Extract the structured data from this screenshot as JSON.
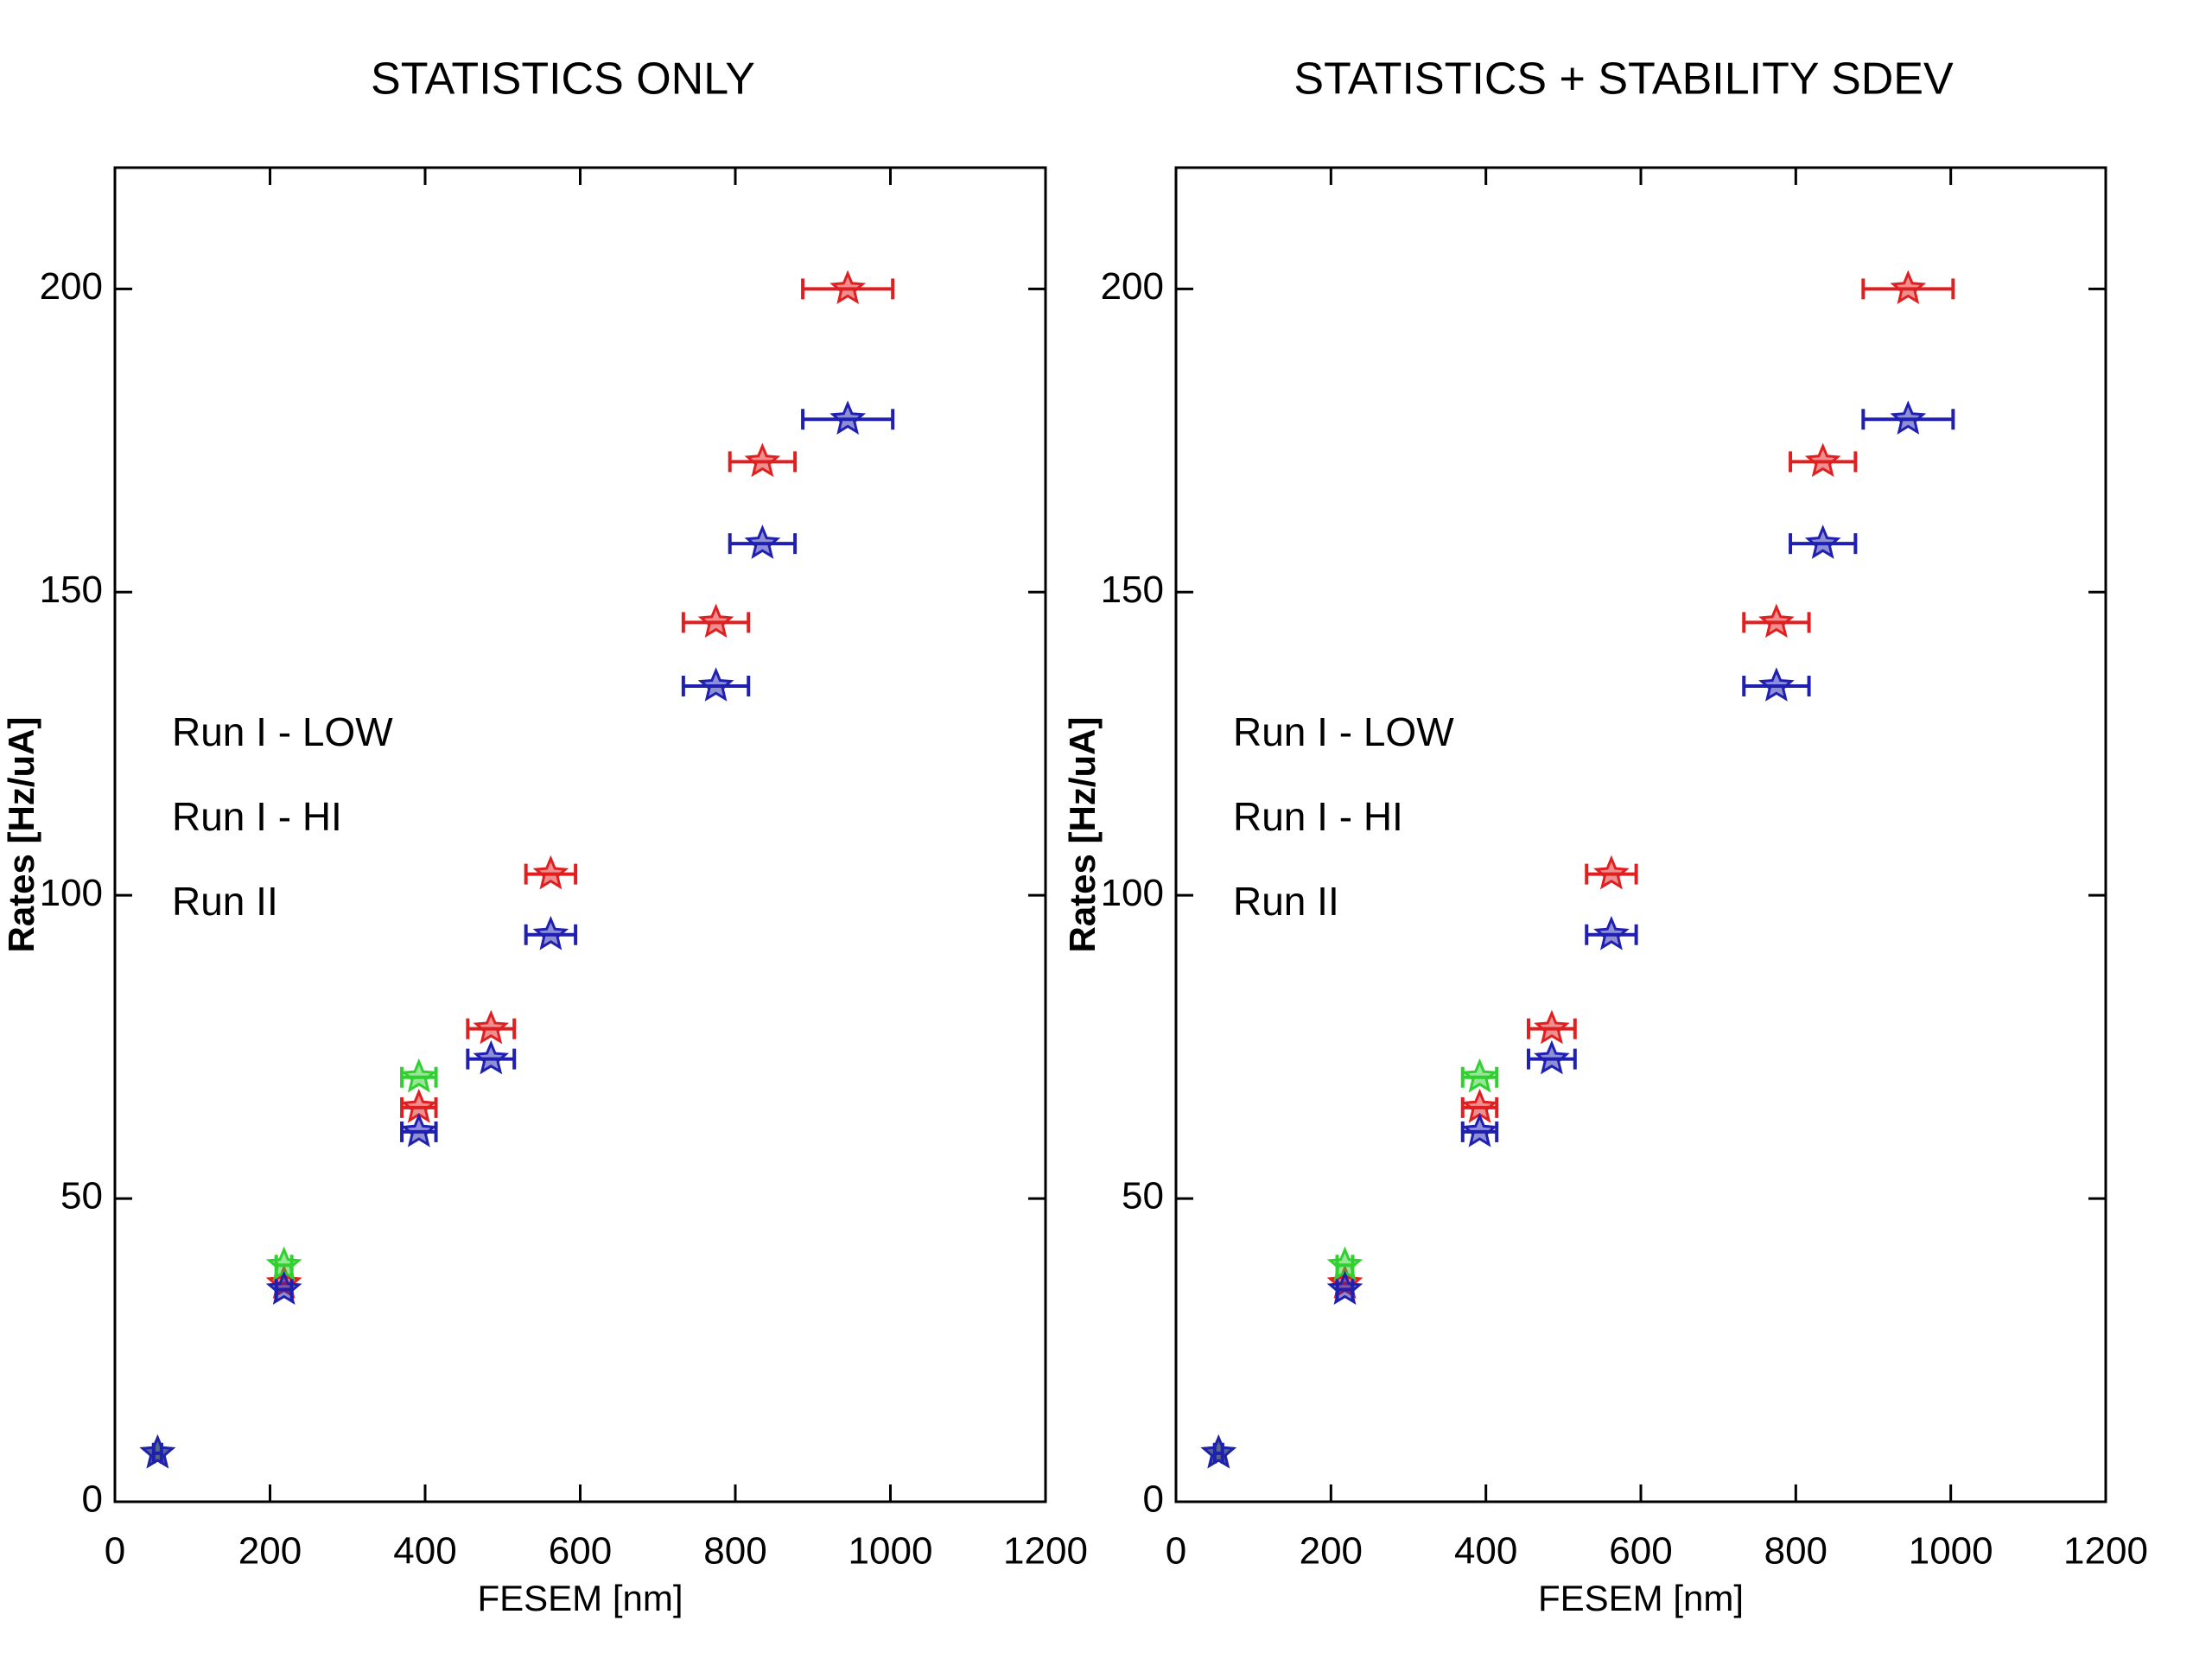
{
  "chart_data": [
    {
      "type": "scatter",
      "title": "STATISTICS ONLY",
      "xlabel": "FESEM [nm]",
      "ylabel": "Rates [Hz/uA]",
      "xlim": [
        0,
        1200
      ],
      "ylim": [
        0,
        220
      ],
      "xticks": [
        0,
        200,
        400,
        600,
        800,
        1000,
        1200
      ],
      "yticks": [
        0,
        50,
        100,
        150,
        200
      ],
      "grid": false,
      "legend": "left",
      "series": [
        {
          "name": "Run I - LOW",
          "color": "#e02020",
          "x": [
            945,
            835,
            775,
            562,
            485,
            392,
            218,
            55
          ],
          "values": [
            200,
            171.5,
            145,
            103.5,
            78,
            65,
            36,
            8
          ],
          "xerr": [
            58,
            42,
            42,
            32,
            30,
            22,
            10,
            5
          ]
        },
        {
          "name": "Run I - HI",
          "color": "#30d030",
          "x": [
            392,
            218,
            55
          ],
          "values": [
            70,
            39,
            8
          ],
          "xerr": [
            22,
            10,
            5
          ]
        },
        {
          "name": "Run II",
          "color": "#2020b0",
          "x": [
            945,
            835,
            775,
            562,
            485,
            392,
            218,
            55
          ],
          "values": [
            178.5,
            158,
            134.5,
            93.5,
            73,
            61,
            35,
            8
          ],
          "xerr": [
            58,
            42,
            42,
            32,
            30,
            22,
            10,
            5
          ]
        }
      ]
    },
    {
      "type": "scatter",
      "title": "STATISTICS + STABILITY SDEV",
      "xlabel": "FESEM [nm]",
      "ylabel": "Rates [Hz/uA]",
      "xlim": [
        0,
        1200
      ],
      "ylim": [
        0,
        220
      ],
      "xticks": [
        0,
        200,
        400,
        600,
        800,
        1000,
        1200
      ],
      "yticks": [
        0,
        50,
        100,
        150,
        200
      ],
      "grid": false,
      "legend": "left",
      "series": [
        {
          "name": "Run I - LOW",
          "color": "#e02020",
          "x": [
            945,
            835,
            775,
            562,
            485,
            392,
            218,
            55
          ],
          "values": [
            200,
            171.5,
            145,
            103.5,
            78,
            65,
            36,
            8
          ],
          "xerr": [
            58,
            42,
            42,
            32,
            30,
            22,
            10,
            5
          ]
        },
        {
          "name": "Run I - HI",
          "color": "#30d030",
          "x": [
            392,
            218,
            55
          ],
          "values": [
            70,
            39,
            8
          ],
          "xerr": [
            22,
            10,
            5
          ]
        },
        {
          "name": "Run II",
          "color": "#2020b0",
          "x": [
            945,
            835,
            775,
            562,
            485,
            392,
            218,
            55
          ],
          "values": [
            178.5,
            158,
            134.5,
            93.5,
            73,
            61,
            35,
            8
          ],
          "xerr": [
            58,
            42,
            42,
            32,
            30,
            22,
            10,
            5
          ]
        }
      ]
    }
  ]
}
